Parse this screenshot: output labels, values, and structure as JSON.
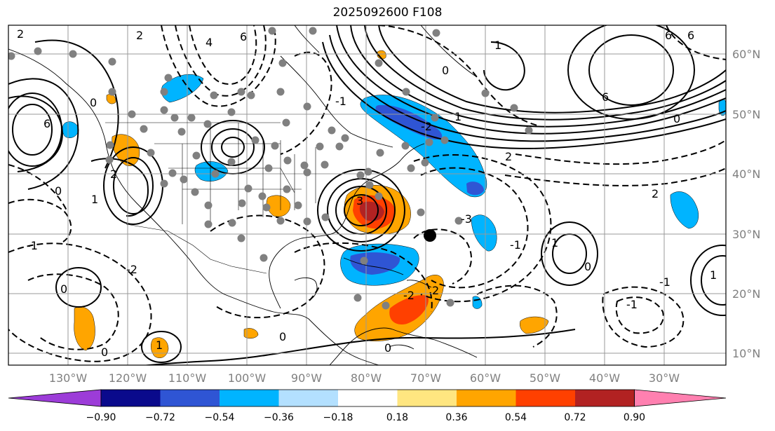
{
  "title": "2025092600 F108",
  "lat_labels": [
    "60°N",
    "50°N",
    "40°N",
    "30°N",
    "20°N",
    "10°N"
  ],
  "lon_labels": [
    "130°W",
    "120°W",
    "110°W",
    "100°W",
    "90°W",
    "80°W",
    "70°W",
    "60°W",
    "50°W",
    "40°W",
    "30°W"
  ],
  "colorbar": {
    "ticks": [
      "−0.90",
      "−0.72",
      "−0.54",
      "−0.36",
      "−0.18",
      "0.18",
      "0.36",
      "0.54",
      "0.72",
      "0.90"
    ],
    "colors": [
      "#9c3cd8",
      "#0a0a8c",
      "#2f55d4",
      "#00b4ff",
      "#b3e0ff",
      "#ffffff",
      "#ffe680",
      "#ffa500",
      "#ff4000",
      "#b22222",
      "#ff80b0"
    ]
  },
  "contour_labels": [
    "6",
    "6",
    "6",
    "2",
    "2",
    "4",
    "0",
    "0",
    "6",
    "2",
    "-1",
    "2",
    "1",
    "0",
    "-1",
    "-2",
    "3",
    "-3",
    "-2",
    "-1",
    "1",
    "0",
    "6",
    "2",
    "0",
    "1",
    "0",
    "0",
    "1",
    "-1",
    "-1",
    "0",
    "2",
    "0",
    "1",
    "-2",
    "1"
  ],
  "marker_colors": {
    "station": "#808080",
    "storm": "#000000"
  },
  "shading_colors": {
    "light_blue": "#00b4ff",
    "blue": "#2f55d4",
    "orange": "#ffa500",
    "red": "#ff4000",
    "dark_red": "#b22222"
  }
}
